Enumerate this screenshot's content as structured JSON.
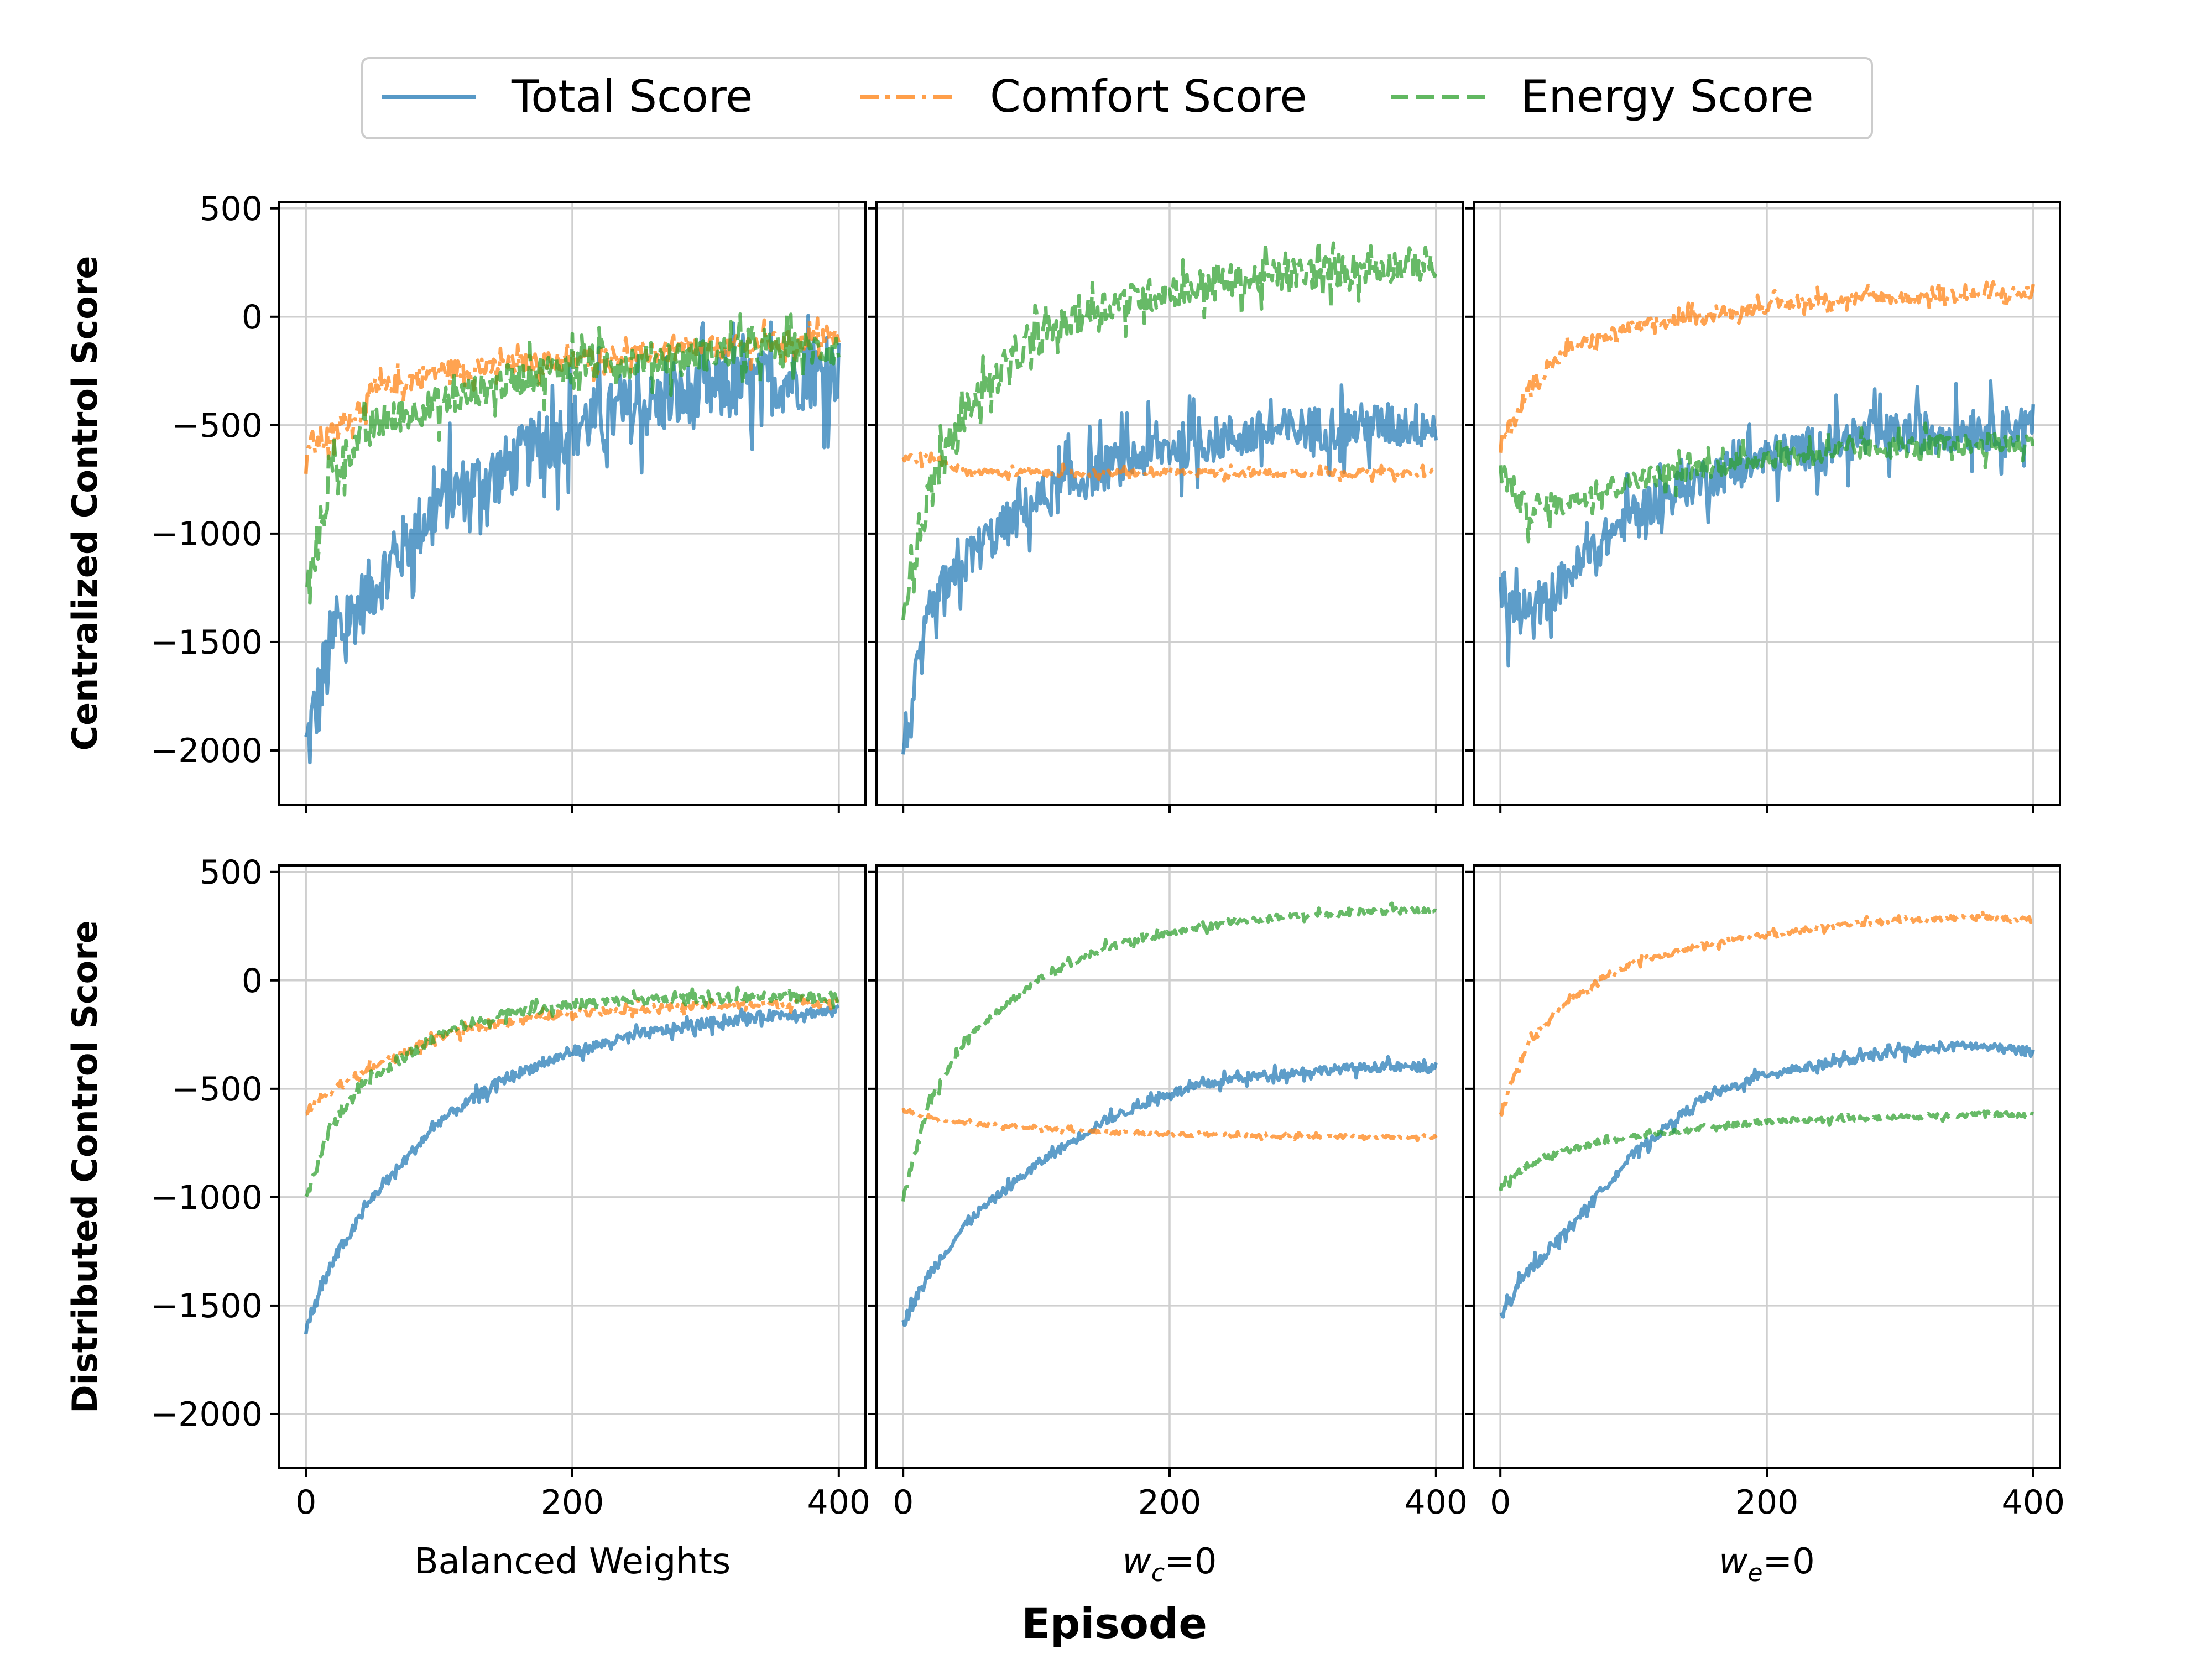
{
  "chart_data": {
    "type": "line",
    "layout": "2x3 grid of subplots with shared x and y axes",
    "xlabel": "Episode",
    "row_labels": [
      "Centralized Control Score",
      "Distributed Control Score"
    ],
    "column_labels": [
      "Balanced Weights",
      "w_c=0",
      "w_e=0"
    ],
    "column_label_parts": [
      {
        "main": "Balanced Weights",
        "sub": "",
        "rest": ""
      },
      {
        "main": "w",
        "sub": "c",
        "rest": "=0"
      },
      {
        "main": "w",
        "sub": "e",
        "rest": "=0"
      }
    ],
    "xlim": [
      -20,
      420
    ],
    "ylim": [
      -2250,
      530
    ],
    "xticks": [
      0,
      200,
      400
    ],
    "yticks": [
      500,
      0,
      -500,
      -1000,
      -1500,
      -2000
    ],
    "ytick_labels": [
      "500",
      "0",
      "−500",
      "−1000",
      "−1500",
      "−2000"
    ],
    "xtick_labels": [
      "0",
      "200",
      "400"
    ],
    "grid": true,
    "legend": {
      "placement": "top-center",
      "entries": [
        {
          "name": "Total Score",
          "color": "#1f77b4",
          "style": "solid"
        },
        {
          "name": "Comfort Score",
          "color": "#ff7f0e",
          "style": "dash-dot"
        },
        {
          "name": "Energy Score",
          "color": "#2ca02c",
          "style": "dashed"
        }
      ]
    },
    "episodes": 400,
    "panels": [
      {
        "row": 0,
        "col": 0,
        "series": [
          {
            "name": "Total Score",
            "x": [
              0,
              20,
              50,
              100,
              150,
              200,
              250,
              300,
              350,
              400
            ],
            "y": [
              -2000,
              -1500,
              -1250,
              -850,
              -700,
              -500,
              -420,
              -350,
              -300,
              -250
            ],
            "noise": 220
          },
          {
            "name": "Comfort Score",
            "x": [
              0,
              20,
              50,
              100,
              150,
              200,
              250,
              300,
              350,
              400
            ],
            "y": [
              -600,
              -550,
              -350,
              -250,
              -230,
              -200,
              -170,
              -150,
              -120,
              -100
            ],
            "noise": 70
          },
          {
            "name": "Energy Score",
            "x": [
              0,
              20,
              50,
              100,
              150,
              200,
              250,
              300,
              350,
              400
            ],
            "y": [
              -1300,
              -700,
              -500,
              -400,
              -300,
              -220,
              -200,
              -170,
              -150,
              -150
            ],
            "noise": 110
          }
        ]
      },
      {
        "row": 0,
        "col": 1,
        "series": [
          {
            "name": "Total Score",
            "x": [
              0,
              20,
              50,
              100,
              150,
              200,
              250,
              300,
              350,
              400
            ],
            "y": [
              -2000,
              -1400,
              -1100,
              -850,
              -700,
              -600,
              -550,
              -520,
              -500,
              -500
            ],
            "noise": 150
          },
          {
            "name": "Comfort Score",
            "x": [
              0,
              20,
              50,
              100,
              150,
              200,
              250,
              300,
              350,
              400
            ],
            "y": [
              -650,
              -650,
              -720,
              -720,
              -720,
              -720,
              -720,
              -720,
              -720,
              -720
            ],
            "noise": 25
          },
          {
            "name": "Energy Score",
            "x": [
              0,
              20,
              50,
              100,
              150,
              200,
              250,
              300,
              350,
              400
            ],
            "y": [
              -1300,
              -800,
              -400,
              -100,
              50,
              120,
              170,
              200,
              230,
              250
            ],
            "noise": 110
          }
        ]
      },
      {
        "row": 0,
        "col": 2,
        "series": [
          {
            "name": "Total Score",
            "x": [
              0,
              20,
              50,
              100,
              150,
              200,
              250,
              300,
              350,
              400
            ],
            "y": [
              -1300,
              -1400,
              -1200,
              -900,
              -750,
              -650,
              -580,
              -540,
              -520,
              -500
            ],
            "noise": 140
          },
          {
            "name": "Comfort Score",
            "x": [
              0,
              20,
              50,
              100,
              150,
              200,
              250,
              300,
              350,
              400
            ],
            "y": [
              -600,
              -350,
              -150,
              -50,
              0,
              50,
              80,
              90,
              100,
              110
            ],
            "noise": 45
          },
          {
            "name": "Energy Score",
            "x": [
              0,
              20,
              50,
              100,
              150,
              200,
              250,
              300,
              350,
              400
            ],
            "y": [
              -700,
              -900,
              -850,
              -750,
              -700,
              -650,
              -620,
              -600,
              -590,
              -580
            ],
            "noise": 70
          }
        ]
      },
      {
        "row": 1,
        "col": 0,
        "series": [
          {
            "name": "Total Score",
            "x": [
              0,
              20,
              50,
              100,
              150,
              200,
              250,
              300,
              350,
              400
            ],
            "y": [
              -1600,
              -1300,
              -1000,
              -650,
              -450,
              -330,
              -250,
              -200,
              -160,
              -140
            ],
            "noise": 35
          },
          {
            "name": "Comfort Score",
            "x": [
              0,
              20,
              50,
              100,
              150,
              200,
              250,
              300,
              350,
              400
            ],
            "y": [
              -600,
              -500,
              -400,
              -260,
              -190,
              -150,
              -130,
              -120,
              -110,
              -100
            ],
            "noise": 25
          },
          {
            "name": "Energy Score",
            "x": [
              0,
              20,
              50,
              100,
              150,
              200,
              250,
              300,
              350,
              400
            ],
            "y": [
              -1000,
              -650,
              -450,
              -250,
              -150,
              -110,
              -90,
              -80,
              -75,
              -80
            ],
            "noise": 30
          }
        ]
      },
      {
        "row": 1,
        "col": 1,
        "series": [
          {
            "name": "Total Score",
            "x": [
              0,
              20,
              50,
              100,
              150,
              200,
              250,
              300,
              350,
              400
            ],
            "y": [
              -1580,
              -1350,
              -1100,
              -850,
              -650,
              -520,
              -450,
              -420,
              -400,
              -400
            ],
            "noise": 30
          },
          {
            "name": "Comfort Score",
            "x": [
              0,
              20,
              50,
              100,
              150,
              200,
              250,
              300,
              350,
              400
            ],
            "y": [
              -600,
              -640,
              -660,
              -680,
              -700,
              -710,
              -715,
              -720,
              -720,
              -720
            ],
            "noise": 12
          },
          {
            "name": "Energy Score",
            "x": [
              0,
              20,
              50,
              100,
              150,
              200,
              250,
              300,
              350,
              400
            ],
            "y": [
              -1000,
              -550,
              -250,
              0,
              150,
              220,
              270,
              300,
              320,
              320
            ],
            "noise": 22
          }
        ]
      },
      {
        "row": 1,
        "col": 2,
        "series": [
          {
            "name": "Total Score",
            "x": [
              0,
              20,
              50,
              100,
              150,
              200,
              250,
              300,
              350,
              400
            ],
            "y": [
              -1550,
              -1350,
              -1150,
              -800,
              -550,
              -430,
              -380,
              -330,
              -300,
              -330
            ],
            "noise": 30
          },
          {
            "name": "Comfort Score",
            "x": [
              0,
              20,
              50,
              100,
              150,
              200,
              250,
              300,
              350,
              400
            ],
            "y": [
              -600,
              -300,
              -100,
              80,
              160,
              210,
              250,
              280,
              290,
              280
            ],
            "noise": 18
          },
          {
            "name": "Energy Score",
            "x": [
              0,
              20,
              50,
              100,
              150,
              200,
              250,
              300,
              350,
              400
            ],
            "y": [
              -950,
              -850,
              -780,
              -720,
              -680,
              -650,
              -640,
              -630,
              -620,
              -620
            ],
            "noise": 18
          }
        ]
      }
    ]
  }
}
